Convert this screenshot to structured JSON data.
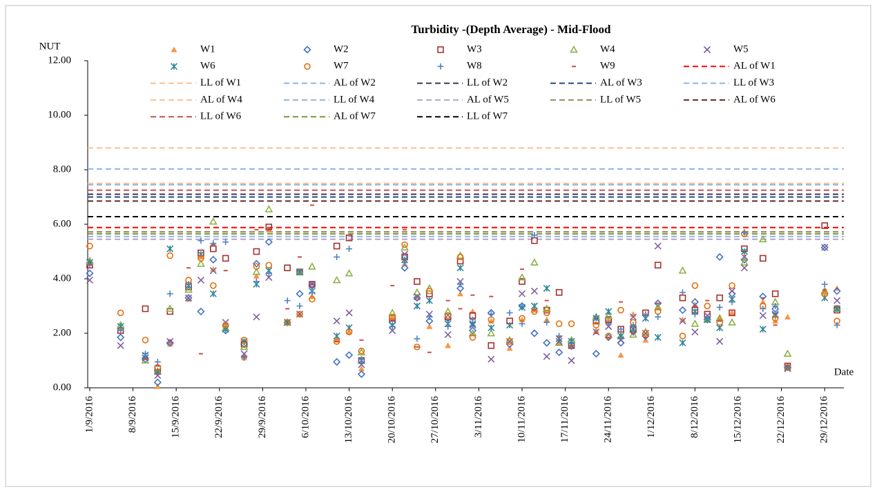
{
  "chart_data": {
    "type": "scatter",
    "title": "Turbidity -(Depth Average) - Mid-Flood",
    "y_label": "NUT",
    "x_label": "Date",
    "x": [
      "1/9/2016",
      "6/9/2016",
      "10/9/2016",
      "12/9/2016",
      "14/9/2016",
      "17/9/2016",
      "19/9/2016",
      "21/9/2016",
      "23/9/2016",
      "26/9/2016",
      "28/9/2016",
      "30/9/2016",
      "3/10/2016",
      "5/10/2016",
      "7/10/2016",
      "11/10/2016",
      "13/10/2016",
      "15/10/2016",
      "20/10/2016",
      "22/10/2016",
      "24/10/2016",
      "26/10/2016",
      "29/10/2016",
      "31/10/2016",
      "2/11/2016",
      "5/11/2016",
      "8/11/2016",
      "10/11/2016",
      "12/11/2016",
      "14/11/2016",
      "16/11/2016",
      "18/11/2016",
      "22/11/2016",
      "24/11/2016",
      "26/11/2016",
      "28/11/2016",
      "30/11/2016",
      "2/12/2016",
      "6/12/2016",
      "8/12/2016",
      "10/12/2016",
      "12/12/2016",
      "14/12/2016",
      "16/12/2016",
      "19/12/2016",
      "21/12/2016",
      "23/12/2016",
      "29/12/2016",
      "31/12/2016"
    ],
    "xlim": [
      "31/8/2016",
      "2/1/2017"
    ],
    "xticks": [
      "1/9/2016",
      "8/9/2016",
      "15/9/2016",
      "22/9/2016",
      "29/9/2016",
      "6/10/2016",
      "13/10/2016",
      "20/10/2016",
      "27/10/2016",
      "3/11/2016",
      "10/11/2016",
      "17/11/2016",
      "24/11/2016",
      "1/12/2016",
      "8/12/2016",
      "15/12/2016",
      "22/12/2016",
      "29/12/2016"
    ],
    "ylim": [
      0,
      12
    ],
    "yticks": [
      {
        "value": 0,
        "label": "0.00"
      },
      {
        "value": 2,
        "label": "2.00"
      },
      {
        "value": 4,
        "label": "4.00"
      },
      {
        "value": 6,
        "label": "6.00"
      },
      {
        "value": 8,
        "label": "8.00"
      },
      {
        "value": 10,
        "label": "10.00"
      },
      {
        "value": 12,
        "label": "12.00"
      }
    ],
    "series": [
      {
        "name": "W1",
        "color": "#f79646",
        "marker": "triangle",
        "values": [
          4.6,
          2.2,
          1.1,
          0.05,
          1.6,
          3.25,
          4.8,
          4.35,
          2.3,
          1.1,
          4.1,
          5.8,
          2.4,
          2.7,
          3.35,
          1.75,
          2.05,
          0.7,
          2.6,
          4.55,
          3.3,
          2.25,
          1.55,
          3.45,
          2.8,
          2.45,
          1.45,
          2.5,
          2.85,
          2.5,
          1.65,
          1.55,
          2.1,
          2.5,
          1.2,
          2.7,
          1.75,
          3.0,
          2.5,
          3.05,
          2.5,
          2.6,
          2.75,
          4.75,
          3.15,
          2.45,
          2.6,
          3.5,
          3.65
        ]
      },
      {
        "name": "W2",
        "color": "#4472c4",
        "marker": "diamond",
        "values": [
          4.2,
          1.85,
          1.05,
          0.2,
          1.65,
          3.3,
          2.8,
          4.7,
          2.1,
          1.6,
          4.55,
          5.35,
          2.4,
          3.45,
          3.75,
          0.95,
          1.2,
          0.5,
          2.4,
          4.4,
          3.3,
          2.45,
          2.55,
          3.65,
          2.1,
          2.75,
          1.6,
          3.0,
          2.0,
          1.65,
          1.3,
          1.7,
          1.25,
          1.85,
          1.65,
          2.05,
          1.9,
          3.1,
          2.85,
          3.15,
          2.5,
          4.8,
          3.45,
          4.7,
          3.35,
          2.9,
          0.75,
          5.15,
          3.55
        ]
      },
      {
        "name": "W3",
        "color": "#a5302f",
        "marker": "square",
        "values": [
          4.5,
          2.1,
          2.9,
          0.7,
          2.8,
          3.7,
          4.95,
          5.1,
          4.75,
          1.6,
          5.0,
          5.9,
          4.4,
          4.25,
          3.8,
          5.2,
          5.5,
          1.0,
          2.55,
          4.8,
          3.9,
          3.45,
          2.6,
          4.65,
          2.65,
          1.55,
          2.45,
          3.9,
          5.4,
          2.85,
          3.5,
          1.55,
          2.45,
          2.5,
          2.15,
          2.15,
          2.75,
          4.5,
          3.3,
          2.85,
          2.7,
          3.3,
          2.75,
          5.1,
          4.75,
          3.45,
          0.8,
          5.95,
          2.85
        ]
      },
      {
        "name": "W4",
        "color": "#8db04a",
        "marker": "triangle-open",
        "values": [
          4.65,
          2.3,
          1.0,
          0.6,
          2.9,
          3.6,
          4.55,
          6.1,
          2.2,
          1.5,
          4.25,
          6.55,
          2.4,
          4.25,
          4.45,
          3.95,
          4.2,
          1.3,
          2.75,
          5.15,
          3.5,
          3.65,
          2.8,
          4.85,
          2.0,
          2.0,
          1.75,
          4.05,
          4.6,
          2.9,
          1.65,
          1.75,
          2.6,
          2.65,
          1.9,
          1.95,
          2.05,
          2.95,
          4.3,
          2.35,
          2.5,
          2.55,
          2.4,
          4.6,
          5.45,
          3.15,
          1.25,
          3.55,
          2.9
        ]
      },
      {
        "name": "W5",
        "color": "#7f5f9f",
        "marker": "x",
        "values": [
          3.95,
          1.55,
          1.1,
          0.45,
          1.7,
          3.3,
          3.95,
          4.3,
          2.4,
          1.25,
          2.6,
          4.05,
          2.4,
          2.7,
          3.8,
          2.45,
          2.75,
          0.85,
          2.1,
          4.9,
          3.35,
          2.7,
          1.95,
          3.9,
          2.3,
          1.05,
          1.7,
          3.45,
          3.55,
          1.15,
          1.7,
          1.0,
          2.05,
          2.25,
          1.75,
          2.6,
          2.0,
          5.2,
          2.45,
          2.05,
          2.65,
          1.7,
          3.55,
          4.4,
          2.65,
          2.7,
          0.7,
          5.15,
          3.2
        ]
      },
      {
        "name": "W6",
        "color": "#31859c",
        "marker": "asterisk",
        "values": [
          4.6,
          2.25,
          1.2,
          0.6,
          5.1,
          3.75,
          4.9,
          3.45,
          2.15,
          1.7,
          3.8,
          4.3,
          2.4,
          4.25,
          3.55,
          1.9,
          2.2,
          1.0,
          2.3,
          4.7,
          3.0,
          3.2,
          2.35,
          4.4,
          2.35,
          2.2,
          2.3,
          2.95,
          3.0,
          3.65,
          1.8,
          1.7,
          2.55,
          2.8,
          1.9,
          2.15,
          2.55,
          1.85,
          1.65,
          2.8,
          2.5,
          2.2,
          3.25,
          5.0,
          2.15,
          2.65,
          0.75,
          3.3,
          2.9
        ]
      },
      {
        "name": "W7",
        "color": "#e46c0a",
        "marker": "circle-open",
        "values": [
          5.2,
          2.75,
          1.75,
          0.75,
          4.85,
          3.95,
          4.75,
          3.75,
          2.3,
          1.75,
          4.45,
          4.5,
          2.4,
          2.7,
          3.25,
          1.7,
          2.05,
          1.35,
          2.6,
          5.25,
          1.5,
          3.55,
          2.65,
          4.8,
          1.85,
          2.5,
          1.7,
          2.55,
          2.8,
          2.75,
          2.35,
          2.35,
          2.3,
          1.9,
          2.85,
          2.4,
          2.0,
          2.8,
          1.9,
          3.75,
          3.0,
          2.4,
          3.75,
          5.65,
          3.0,
          2.55,
          0.75,
          3.45,
          2.45
        ]
      },
      {
        "name": "W8",
        "color": "#4f81bd",
        "marker": "plus",
        "values": [
          4.5,
          2.1,
          1.25,
          0.95,
          3.45,
          3.8,
          5.4,
          5.3,
          5.35,
          1.1,
          3.9,
          4.2,
          3.2,
          3.0,
          3.5,
          4.8,
          5.1,
          1.05,
          2.25,
          4.6,
          1.8,
          2.6,
          2.25,
          3.8,
          2.5,
          2.7,
          2.75,
          2.35,
          5.6,
          2.4,
          1.9,
          1.5,
          2.6,
          2.35,
          2.15,
          2.3,
          2.7,
          2.6,
          3.5,
          2.7,
          2.55,
          2.95,
          3.15,
          5.7,
          2.9,
          3.0,
          0.75,
          3.8,
          2.3
        ]
      },
      {
        "name": "W9",
        "color": "#c0504d",
        "marker": "dash",
        "values": [
          4.5,
          2.0,
          1.05,
          0.5,
          1.75,
          4.4,
          1.25,
          5.25,
          4.3,
          1.15,
          5.8,
          5.85,
          2.9,
          4.8,
          6.7,
          1.7,
          5.6,
          1.75,
          3.75,
          5.8,
          1.5,
          1.3,
          3.2,
          2.9,
          3.4,
          3.35,
          2.35,
          4.35,
          2.85,
          3.2,
          1.85,
          1.55,
          2.0,
          1.85,
          3.15,
          2.0,
          1.85,
          3.1,
          3.4,
          3.0,
          3.2,
          2.45,
          2.85,
          4.85,
          3.3,
          2.3,
          0.8,
          3.6,
          3.0
        ]
      }
    ],
    "reference_lines": [
      {
        "name": "AL of W1",
        "color": "#ff0000",
        "value": 5.88
      },
      {
        "name": "LL of W1",
        "color": "#fac090",
        "value": 7.5
      },
      {
        "name": "AL of W2",
        "color": "#8db4e2",
        "value": 8.03
      },
      {
        "name": "LL of W2",
        "color": "#403152",
        "value": 7.1
      },
      {
        "name": "AL of W3",
        "color": "#1f497d",
        "value": 7.0
      },
      {
        "name": "LL of W3",
        "color": "#8db4e2",
        "value": 5.55
      },
      {
        "name": "AL of W4",
        "color": "#fac090",
        "value": 8.8
      },
      {
        "name": "LL of W4",
        "color": "#95b3d7",
        "value": 7.45
      },
      {
        "name": "AL of W5",
        "color": "#b3a2c7",
        "value": 5.45
      },
      {
        "name": "LL of W5",
        "color": "#948a54",
        "value": 5.72
      },
      {
        "name": "AL of W6",
        "color": "#632523",
        "value": 6.85
      },
      {
        "name": "LL of W6",
        "color": "#c0504d",
        "value": 7.25
      },
      {
        "name": "AL of W7",
        "color": "#77933c",
        "value": 5.65
      },
      {
        "name": "LL of W7",
        "color": "#000000",
        "value": 6.28
      }
    ]
  }
}
